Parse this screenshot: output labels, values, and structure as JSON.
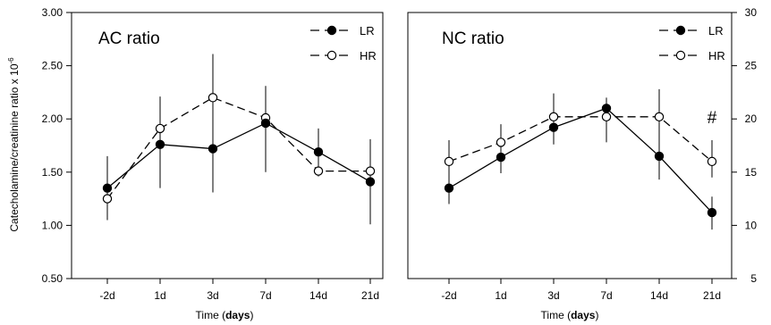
{
  "chart_data": [
    {
      "type": "line",
      "title": "AC ratio",
      "xlabel_prefix": "Time (",
      "xlabel_unit": "days",
      "xlabel_suffix": ")",
      "ylabel": "Catecholamine/creatinine ratio x 10",
      "ylabel_exponent": "-6",
      "categories": [
        "-2d",
        "1d",
        "3d",
        "7d",
        "14d",
        "21d"
      ],
      "ylim": [
        0.5,
        3.0
      ],
      "yticks": [
        "0.50",
        "1.00",
        "1.50",
        "2.00",
        "2.50",
        "3.00"
      ],
      "legend_position": "top-right",
      "series": [
        {
          "name": "LR",
          "marker": "filled",
          "line": "solid",
          "values": [
            1.35,
            1.76,
            1.72,
            1.96,
            1.69,
            1.41
          ],
          "err_low": [
            1.05,
            1.35,
            1.31,
            1.5,
            1.46,
            1.01
          ],
          "err_high": [
            1.65,
            2.21,
            2.1,
            2.31,
            1.91,
            1.81
          ]
        },
        {
          "name": "HR",
          "marker": "open",
          "line": "dashed",
          "values": [
            1.25,
            1.91,
            2.2,
            2.01,
            1.51,
            1.51
          ],
          "err_low": [
            1.13,
            1.7,
            1.95,
            1.88,
            1.51,
            1.51
          ],
          "err_high": [
            1.35,
            2.1,
            2.61,
            2.13,
            1.51,
            1.51
          ]
        }
      ]
    },
    {
      "type": "line",
      "title": "NC ratio",
      "xlabel_prefix": "Time (",
      "xlabel_unit": "days",
      "xlabel_suffix": ")",
      "categories": [
        "-2d",
        "1d",
        "3d",
        "7d",
        "14d",
        "21d"
      ],
      "ylim": [
        5,
        30
      ],
      "yticks": [
        "5",
        "10",
        "15",
        "20",
        "25",
        "30"
      ],
      "legend_position": "top-right",
      "annotations": [
        {
          "text": "#",
          "category": "21d",
          "value": 20
        }
      ],
      "series": [
        {
          "name": "LR",
          "marker": "filled",
          "line": "solid",
          "values": [
            13.5,
            16.4,
            19.2,
            21.0,
            16.5,
            11.2
          ],
          "err_low": [
            12.0,
            14.9,
            17.6,
            19.2,
            14.3,
            9.6
          ],
          "err_high": [
            15.0,
            17.7,
            20.8,
            22.0,
            19.4,
            12.7
          ]
        },
        {
          "name": "HR",
          "marker": "open",
          "line": "dashed",
          "values": [
            16.0,
            17.8,
            20.2,
            20.2,
            20.2,
            16.0
          ],
          "err_low": [
            14.8,
            16.7,
            19.0,
            17.8,
            18.0,
            14.5
          ],
          "err_high": [
            18.0,
            19.5,
            22.4,
            21.8,
            22.8,
            18.0
          ]
        }
      ]
    }
  ]
}
